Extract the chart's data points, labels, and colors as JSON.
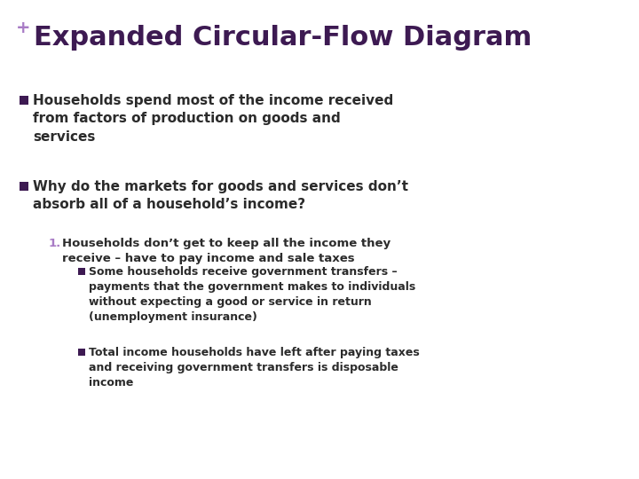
{
  "title": "Expanded Circular-Flow Diagram",
  "plus_sign": "+",
  "bg_color": "#ffffff",
  "title_color": "#3d1a52",
  "title_fontsize": 22,
  "plus_color": "#a87bc5",
  "text_color": "#2b2b2b",
  "bullet_square_color": "#3d1a52",
  "number_color": "#a87bc5",
  "accent_rect_color": "#5b2367",
  "accent_line_color": "#7b6fa0",
  "bullet1_text": "Households spend most of the income received\nfrom factors of production on goods and\nservices",
  "bullet2_text": "Why do the markets for goods and services don’t\nabsorb all of a household’s income?",
  "sub1_text": "Households don’t get to keep all the income they\nreceive – have to pay income and sale taxes",
  "sub1a_text": "Some households receive government transfers –\npayments that the government makes to individuals\nwithout expecting a good or service in return\n(unemployment insurance)",
  "sub1b_text": "Total income households have left after paying taxes\nand receiving government transfers is disposable\nincome"
}
